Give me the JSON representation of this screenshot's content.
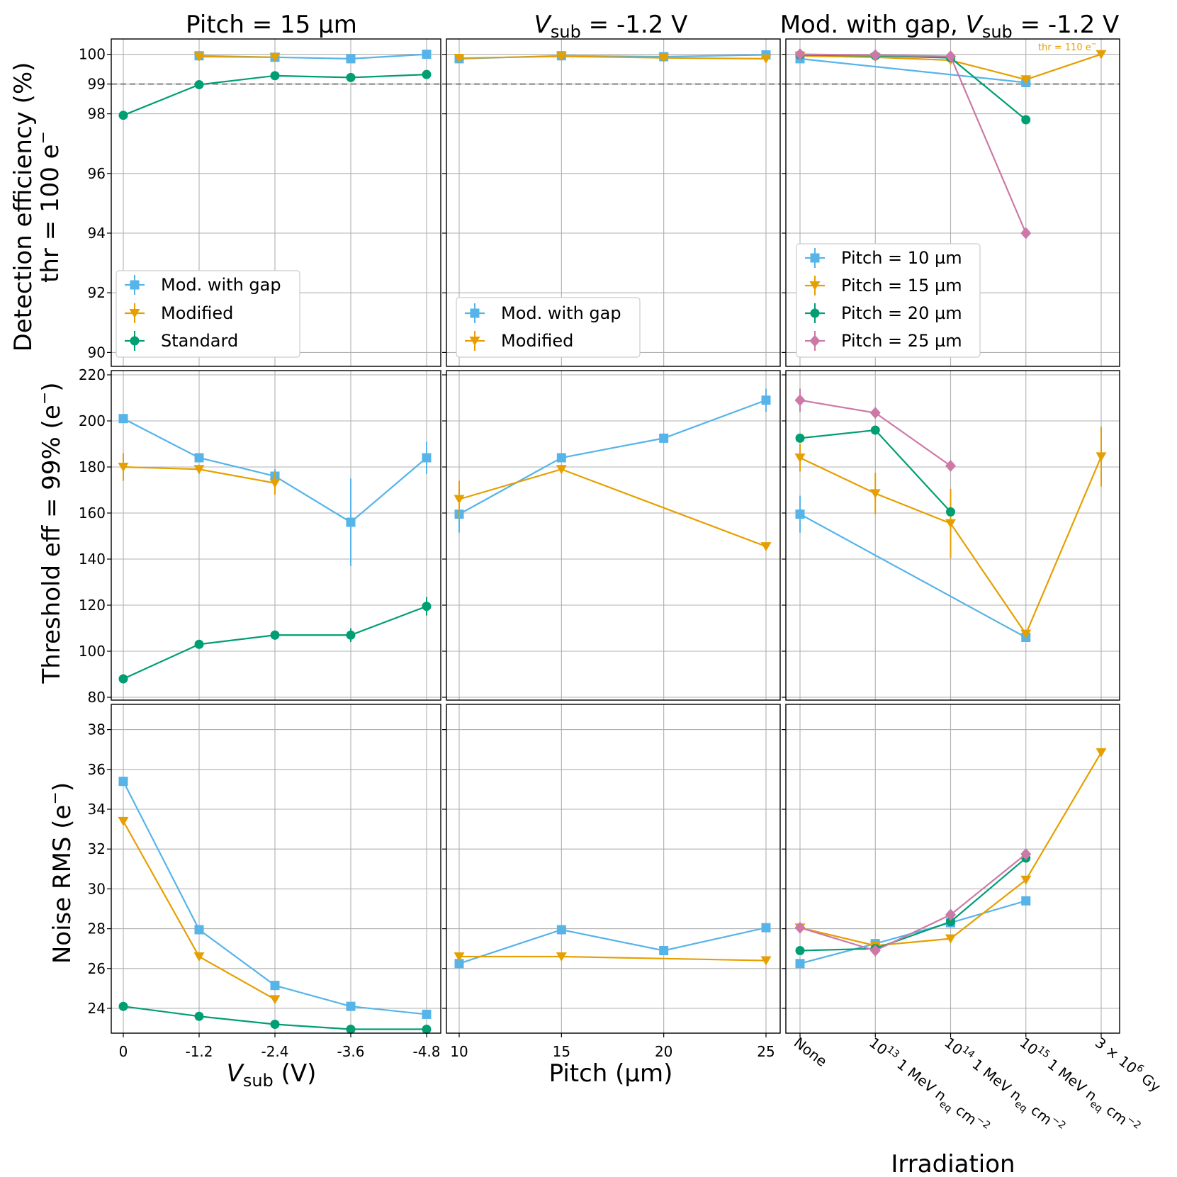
{
  "colors": {
    "mod_with_gap": "#56b4e9",
    "modified": "#e69f00",
    "standard": "#009e73",
    "pitch_25": "#cc79a7",
    "grid": "#b0b0b0",
    "ref_line": "#808080"
  },
  "columns": {
    "col1_title": "Pitch = 15 µm",
    "col2_title_var": "V",
    "col2_title_sub": "sub",
    "col2_title_rest": " = -1.2 V",
    "col3_title_pre": "Mod. with gap, ",
    "col3_title_var": "V",
    "col3_title_sub": "sub",
    "col3_title_rest": " = -1.2 V"
  },
  "rows": {
    "row1_ylabel_line1": "Detection efficiency (%)",
    "row1_ylabel_line2": "thr = 100 e",
    "row1_ylabel_sup": "−",
    "row2_ylabel": "Threshold eff = 99% (e",
    "row2_ylabel_sup": "−",
    "row2_ylabel_end": ")",
    "row3_ylabel": "Noise RMS (e",
    "row3_ylabel_sup": "−",
    "row3_ylabel_end": ")"
  },
  "xaxes": {
    "col1_var": "V",
    "col1_sub": "sub",
    "col1_unit": " (V)",
    "col2_label": "Pitch (µm)",
    "col3_label": "Irradiation"
  },
  "annotation": {
    "thr_label": "thr = 110 e",
    "thr_sup": "−"
  },
  "legends": {
    "col1": [
      "Mod. with gap",
      "Modified",
      "Standard"
    ],
    "col2": [
      "Mod. with gap",
      "Modified"
    ],
    "col3": [
      "Pitch = 10 µm",
      "Pitch = 15 µm",
      "Pitch = 20 µm",
      "Pitch = 25 µm"
    ]
  },
  "chart_data": [
    {
      "type": "line",
      "panel": "r1c1",
      "title": "Pitch = 15 µm",
      "ylabel": "Detection efficiency (%) thr = 100 e−",
      "x": [
        "0",
        "-1.2",
        "-2.4",
        "-3.6",
        "-4.8"
      ],
      "ylim": [
        89.7,
        100.5
      ],
      "yticks": [
        90,
        92,
        94,
        96,
        98,
        99,
        100
      ],
      "yscale": "split at 98 (upper part 98–100 expanded)",
      "reference_line": 99,
      "series": [
        {
          "name": "Mod. with gap",
          "values": [
            null,
            99.95,
            99.9,
            99.85,
            100.0
          ]
        },
        {
          "name": "Modified",
          "values": [
            null,
            99.92,
            99.9,
            null,
            null
          ]
        },
        {
          "name": "Standard",
          "values": [
            97.95,
            98.98,
            99.28,
            99.22,
            99.32
          ]
        }
      ]
    },
    {
      "type": "line",
      "panel": "r1c2",
      "title": "Vsub = -1.2 V",
      "x": [
        10,
        15,
        20,
        25
      ],
      "series": [
        {
          "name": "Mod. with gap",
          "values": [
            99.85,
            99.95,
            99.92,
            99.98
          ]
        },
        {
          "name": "Modified",
          "values": [
            99.87,
            99.93,
            99.88,
            99.85
          ]
        }
      ]
    },
    {
      "type": "line",
      "panel": "r1c3",
      "title": "Mod. with gap, Vsub = -1.2 V",
      "x": [
        "None",
        "10^13 1 MeV neq cm^-2",
        "10^14 1 MeV neq cm^-2",
        "10^15 1 MeV neq cm^-2",
        "3 × 10^6 Gy"
      ],
      "annotation": "thr = 110 e−",
      "series": [
        {
          "name": "Pitch = 10 µm",
          "values": [
            99.85,
            null,
            null,
            99.05,
            null
          ]
        },
        {
          "name": "Pitch = 15 µm",
          "values": [
            99.95,
            99.9,
            99.8,
            99.15,
            100.0
          ]
        },
        {
          "name": "Pitch = 20 µm",
          "values": [
            99.98,
            99.95,
            99.88,
            97.8,
            null
          ]
        },
        {
          "name": "Pitch = 25 µm",
          "values": [
            100.0,
            99.97,
            99.93,
            94.0,
            null
          ]
        }
      ]
    },
    {
      "type": "line",
      "panel": "r2c1",
      "ylabel": "Threshold eff = 99% (e−)",
      "x": [
        "0",
        "-1.2",
        "-2.4",
        "-3.6",
        "-4.8"
      ],
      "ylim": [
        80,
        220
      ],
      "yticks": [
        80,
        100,
        120,
        140,
        160,
        180,
        200,
        220
      ],
      "series": [
        {
          "name": "Mod. with gap",
          "values": [
            201,
            184,
            176,
            156,
            184
          ],
          "err": [
            0,
            2,
            3,
            19,
            7
          ]
        },
        {
          "name": "Modified",
          "values": [
            180,
            179,
            173,
            null,
            null
          ],
          "err": [
            6,
            2,
            5,
            0,
            0
          ]
        },
        {
          "name": "Standard",
          "values": [
            88,
            103,
            107,
            107,
            119.5
          ],
          "err": [
            2,
            1,
            2,
            3,
            4
          ]
        }
      ]
    },
    {
      "type": "line",
      "panel": "r2c2",
      "x": [
        10,
        15,
        20,
        25
      ],
      "series": [
        {
          "name": "Mod. with gap",
          "values": [
            159.5,
            184,
            192.5,
            209
          ],
          "err": [
            8,
            2,
            2,
            5
          ]
        },
        {
          "name": "Modified",
          "values": [
            166,
            179,
            null,
            145.5
          ],
          "err": [
            8,
            2,
            0,
            1
          ]
        }
      ]
    },
    {
      "type": "line",
      "panel": "r2c3",
      "x": [
        "None",
        "10^13 1 MeV neq cm^-2",
        "10^14 1 MeV neq cm^-2",
        "10^15 1 MeV neq cm^-2",
        "3 × 10^6 Gy"
      ],
      "series": [
        {
          "name": "Pitch = 10 µm",
          "values": [
            159.5,
            null,
            null,
            106,
            null
          ],
          "err": [
            8,
            0,
            0,
            1,
            0
          ]
        },
        {
          "name": "Pitch = 15 µm",
          "values": [
            184,
            168.5,
            155.5,
            107.5,
            184.5
          ],
          "err": [
            6,
            9,
            15,
            1,
            13
          ]
        },
        {
          "name": "Pitch = 20 µm",
          "values": [
            192.5,
            196,
            160.5,
            null,
            null
          ],
          "err": [
            0,
            0,
            0,
            0,
            0
          ]
        },
        {
          "name": "Pitch = 25 µm",
          "values": [
            209,
            203.5,
            180.5,
            null,
            null
          ],
          "err": [
            5,
            0,
            0,
            0,
            0
          ]
        }
      ]
    },
    {
      "type": "line",
      "panel": "r3c1",
      "ylabel": "Noise RMS (e−)",
      "xlabel": "Vsub (V)",
      "x": [
        "0",
        "-1.2",
        "-2.4",
        "-3.6",
        "-4.8"
      ],
      "ylim": [
        22.6,
        39
      ],
      "yticks": [
        24,
        26,
        28,
        30,
        32,
        34,
        36,
        38
      ],
      "series": [
        {
          "name": "Mod. with gap",
          "values": [
            35.4,
            27.95,
            25.15,
            24.1,
            23.7
          ]
        },
        {
          "name": "Modified",
          "values": [
            33.4,
            26.6,
            24.45,
            null,
            null
          ]
        },
        {
          "name": "Standard",
          "values": [
            24.1,
            23.6,
            23.2,
            22.95,
            22.95
          ]
        }
      ]
    },
    {
      "type": "line",
      "panel": "r3c2",
      "xlabel": "Pitch (µm)",
      "x": [
        10,
        15,
        20,
        25
      ],
      "series": [
        {
          "name": "Mod. with gap",
          "values": [
            26.25,
            27.95,
            26.9,
            28.05
          ]
        },
        {
          "name": "Modified",
          "values": [
            26.6,
            26.6,
            null,
            26.4
          ]
        }
      ]
    },
    {
      "type": "line",
      "panel": "r3c3",
      "xlabel": "Irradiation",
      "x": [
        "None",
        "10^13 1 MeV neq cm^-2",
        "10^14 1 MeV neq cm^-2",
        "10^15 1 MeV neq cm^-2",
        "3 × 10^6 Gy"
      ],
      "series": [
        {
          "name": "Pitch = 10 µm",
          "values": [
            26.25,
            27.25,
            28.3,
            29.4,
            null
          ]
        },
        {
          "name": "Pitch = 15 µm",
          "values": [
            28.05,
            27.15,
            27.5,
            30.45,
            36.85
          ]
        },
        {
          "name": "Pitch = 20 µm",
          "values": [
            26.9,
            27.0,
            28.35,
            31.55,
            null
          ]
        },
        {
          "name": "Pitch = 25 µm",
          "values": [
            28.05,
            26.9,
            28.7,
            31.75,
            null
          ]
        }
      ]
    }
  ]
}
